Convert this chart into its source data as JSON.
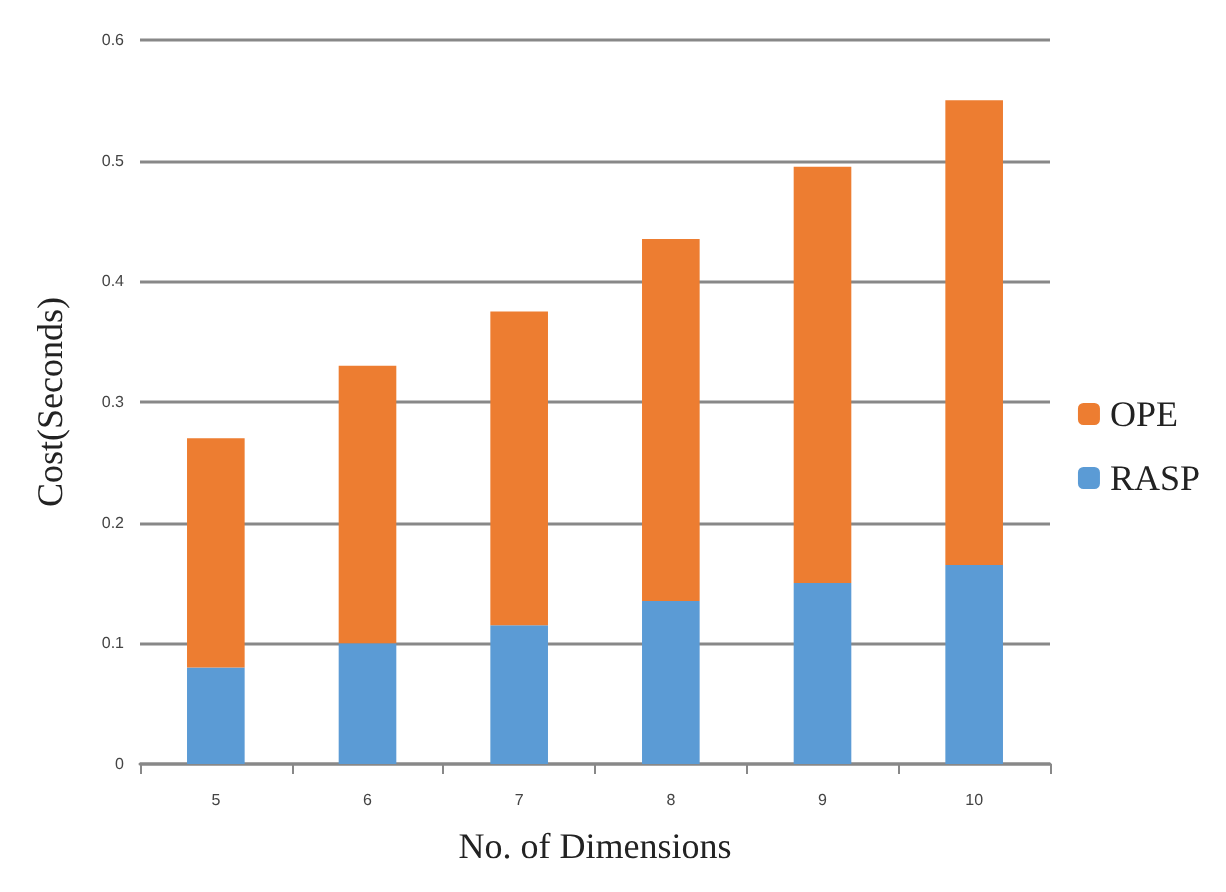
{
  "chart_data": {
    "type": "bar",
    "stacked": true,
    "xlabel": "No. of Dimensions",
    "ylabel": "Cost(Seconds)",
    "categories": [
      "5",
      "6",
      "7",
      "8",
      "9",
      "10"
    ],
    "series": [
      {
        "name": "RASP",
        "color": "#5b9bd5",
        "values": [
          0.08,
          0.1,
          0.115,
          0.135,
          0.15,
          0.165
        ]
      },
      {
        "name": "OPE",
        "color": "#ed7d31",
        "values": [
          0.19,
          0.23,
          0.26,
          0.3,
          0.345,
          0.385
        ]
      }
    ],
    "ylim": [
      0,
      0.6
    ],
    "yticks": [
      0,
      0.1,
      0.2,
      0.3,
      0.4,
      0.5,
      0.6
    ],
    "grid": "y",
    "legend": "right"
  }
}
